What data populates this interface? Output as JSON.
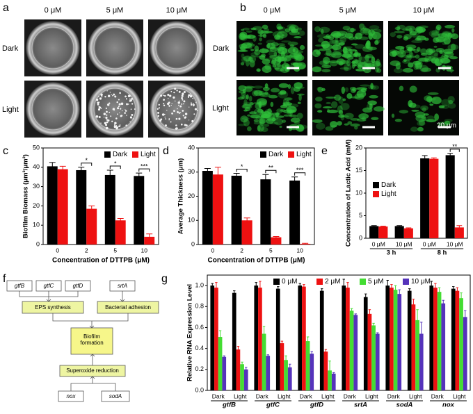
{
  "panel_a": {
    "label": "a",
    "columns": [
      "0 μM",
      "5 μM",
      "10 μM"
    ],
    "rows": [
      "Dark",
      "Light"
    ]
  },
  "panel_b": {
    "label": "b",
    "columns": [
      "0 μM",
      "5 μM",
      "10 μM"
    ],
    "rows": [
      "Dark",
      "Light"
    ],
    "scale_bar": "20 μm"
  },
  "panel_f": {
    "label": "f",
    "nodes": [
      "gtfB",
      "gtfC",
      "gtfD",
      "srtA",
      "EPS synthesis",
      "Bacterial adhesion",
      "Biofilm formation",
      "Superoxide reduction",
      "nox",
      "sodA"
    ]
  },
  "chart_data": [
    {
      "type": "bar",
      "panel_label": "c",
      "y_label": "Biofilm Biomass (μm³/μm²)",
      "x_label": "Concentration of DTTPB (μM)",
      "categories": [
        "0",
        "2",
        "5",
        "10"
      ],
      "series": [
        {
          "name": "Dark",
          "color": "#000000",
          "values": [
            40.5,
            38.5,
            36,
            35.5
          ],
          "errors": [
            2,
            1.5,
            2.5,
            1.5
          ]
        },
        {
          "name": "Light",
          "color": "#ee1111",
          "values": [
            39,
            18.5,
            12.5,
            4
          ],
          "errors": [
            1.5,
            1.5,
            1,
            1.5
          ]
        }
      ],
      "significance": [
        null,
        "*",
        "*",
        "***"
      ],
      "ylim": [
        0,
        50
      ],
      "yticks": [
        0,
        10,
        20,
        30,
        40,
        50
      ],
      "legend": "upper right"
    },
    {
      "type": "bar",
      "panel_label": "d",
      "y_label": "Average Thickness (μm)",
      "x_label": "Concentration of DTTPB (μM)",
      "categories": [
        "0",
        "2",
        "5",
        "10"
      ],
      "series": [
        {
          "name": "Dark",
          "color": "#000000",
          "values": [
            30.5,
            28.5,
            27,
            26.5
          ],
          "errors": [
            1,
            1,
            2,
            1.5
          ]
        },
        {
          "name": "Light",
          "color": "#ee1111",
          "values": [
            29,
            10,
            3,
            0.3
          ],
          "errors": [
            3,
            1,
            0.3,
            0.2
          ]
        }
      ],
      "significance": [
        null,
        "*",
        "**",
        "***"
      ],
      "ylim": [
        0,
        40
      ],
      "yticks": [
        0,
        10,
        20,
        30,
        40
      ],
      "legend": "upper right"
    },
    {
      "type": "bar",
      "panel_label": "e",
      "y_label": "Concentration of Lactic Acid (mM)",
      "categories": [
        "0 μM",
        "10 μM",
        "0 μM",
        "10 μM"
      ],
      "groups": [
        "3 h",
        "8 h"
      ],
      "series": [
        {
          "name": "Dark",
          "color": "#000000",
          "values": [
            2.7,
            2.7,
            17.7,
            18.4
          ],
          "errors": [
            0.1,
            0.1,
            0.6,
            0.4
          ]
        },
        {
          "name": "Light",
          "color": "#ee1111",
          "values": [
            2.6,
            2.2,
            17.6,
            2.4
          ],
          "errors": [
            0.1,
            0.1,
            0.2,
            0.4
          ]
        }
      ],
      "significance": [
        null,
        null,
        null,
        "**"
      ],
      "ylim": [
        0,
        20
      ],
      "yticks": [
        0,
        5,
        10,
        15,
        20
      ],
      "legend": "center left"
    },
    {
      "type": "bar",
      "panel_label": "g",
      "y_label": "Relative RNA Expression Level",
      "categories": [
        "Dark",
        "Light",
        "Dark",
        "Light",
        "Dark",
        "Light",
        "Dark",
        "Light",
        "Dark",
        "Light",
        "Dark",
        "Light"
      ],
      "groups": [
        "gtfB",
        "gtfC",
        "gtfD",
        "srtA",
        "sodA",
        "nox"
      ],
      "series": [
        {
          "name": "0 μM",
          "color": "#000000",
          "values": [
            1.0,
            0.93,
            1.0,
            0.97,
            1.0,
            0.95,
            1.0,
            0.89,
            1.0,
            0.95,
            1.0,
            0.97
          ],
          "errors": [
            0.02,
            0.02,
            0.03,
            0.02,
            0.02,
            0.02,
            0.06,
            0.03,
            0.05,
            0.02,
            0.04,
            0.02
          ]
        },
        {
          "name": "2 μM",
          "color": "#ee1111",
          "values": [
            0.98,
            0.39,
            0.98,
            0.45,
            0.99,
            0.37,
            0.98,
            0.73,
            0.98,
            0.82,
            0.98,
            0.95
          ],
          "errors": [
            0.05,
            0.03,
            0.06,
            0.02,
            0.02,
            0.02,
            0.05,
            0.04,
            0.03,
            0.05,
            0.04,
            0.03
          ]
        },
        {
          "name": "5 μM",
          "color": "#44dd33",
          "values": [
            0.51,
            0.25,
            0.54,
            0.29,
            0.47,
            0.19,
            0.76,
            0.62,
            0.96,
            0.67,
            0.94,
            0.88
          ],
          "errors": [
            0.06,
            0.02,
            0.07,
            0.04,
            0.04,
            0.09,
            0.02,
            0.02,
            0.04,
            0.1,
            0.04,
            0.05
          ]
        },
        {
          "name": "10 μM",
          "color": "#5533bb",
          "values": [
            0.32,
            0.2,
            0.33,
            0.22,
            0.35,
            0.16,
            0.72,
            0.54,
            0.92,
            0.54,
            0.83,
            0.7
          ],
          "errors": [
            0.01,
            0.02,
            0.01,
            0.03,
            0.02,
            0.01,
            0.01,
            0.01,
            0.04,
            0.11,
            0.03,
            0.06
          ]
        }
      ],
      "ylim": [
        0,
        1.1
      ],
      "yticks": [
        {
          "value": 0,
          "label": "0.0"
        },
        0.2,
        0.4,
        0.6,
        0.8,
        {
          "value": 1,
          "label": "1.0"
        }
      ],
      "legend": "upper center"
    }
  ]
}
